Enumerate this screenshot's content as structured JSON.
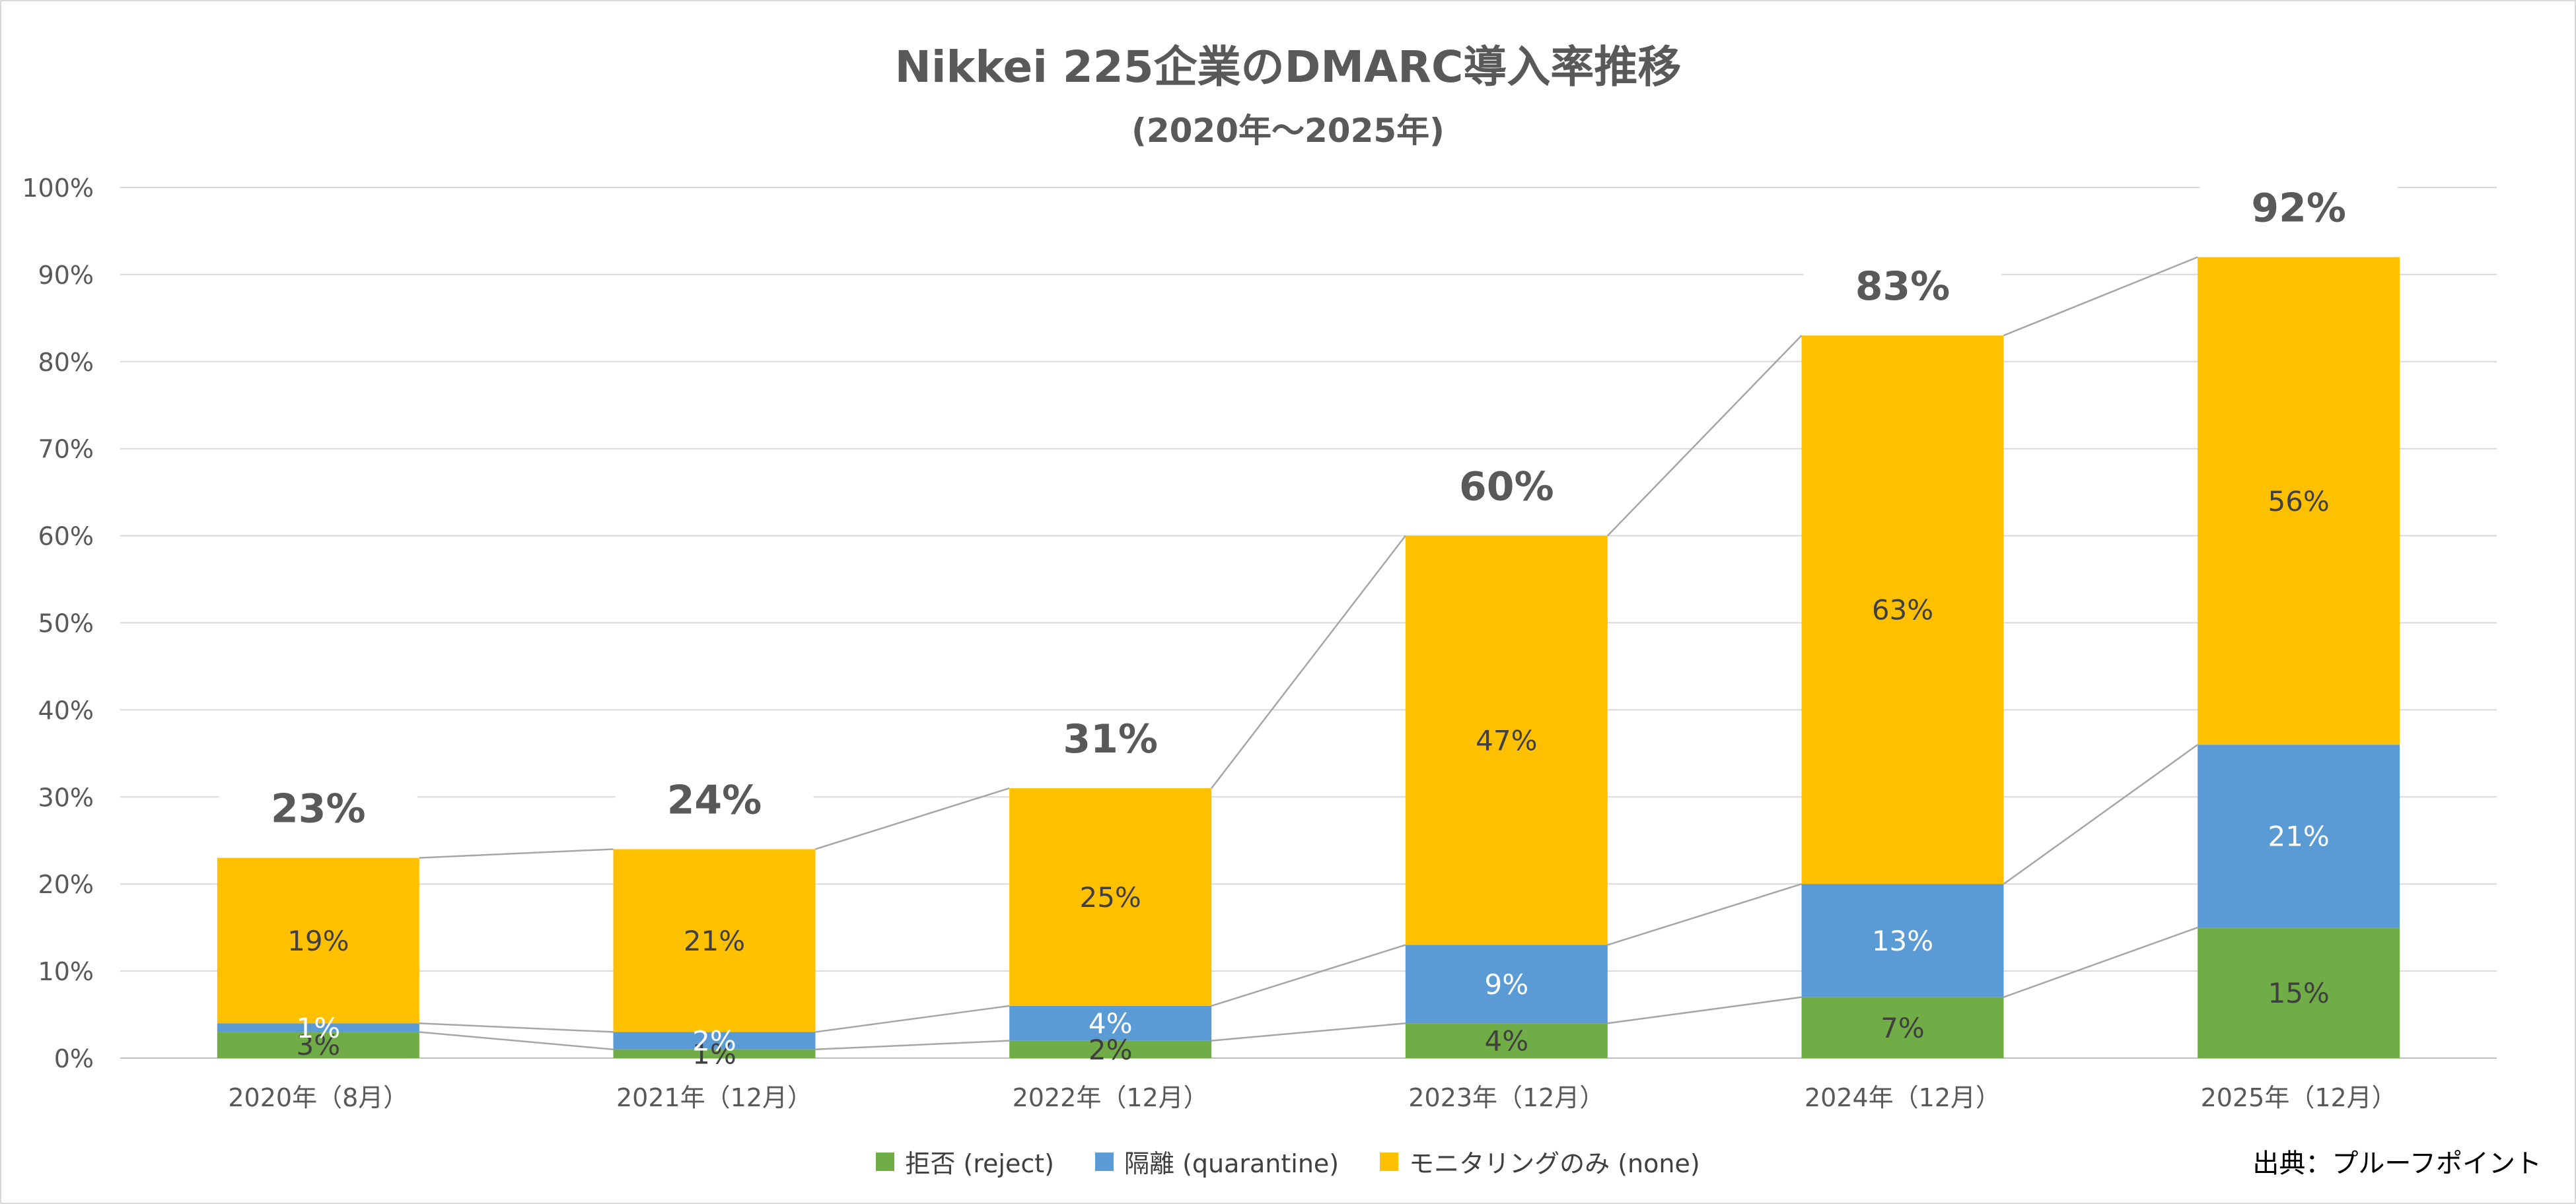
{
  "chart_data": {
    "type": "bar",
    "stacked": true,
    "title": "Nikkei 225企業のDMARC導入率推移",
    "subtitle": "(2020年～2025年)",
    "categories": [
      "2020年（8月）",
      "2021年（12月）",
      "2022年（12月）",
      "2023年（12月）",
      "2024年（12月）",
      "2025年（12月）"
    ],
    "series": [
      {
        "name": "拒否 (reject)",
        "color": "#70ad47",
        "label_color": "#404040",
        "values": [
          3,
          1,
          2,
          4,
          7,
          15
        ],
        "labels": [
          "3%",
          "1%",
          "2%",
          "4%",
          "7%",
          "15%"
        ]
      },
      {
        "name": "隔離 (quarantine)",
        "color": "#5b9bd5",
        "label_color": "#ffffff",
        "values": [
          1,
          2,
          4,
          9,
          13,
          21
        ],
        "labels": [
          "1%",
          "2%",
          "4%",
          "9%",
          "13%",
          "21%"
        ]
      },
      {
        "name": "モニタリングのみ (none)",
        "color": "#ffc000",
        "label_color": "#404040",
        "values": [
          19,
          21,
          25,
          47,
          63,
          56
        ],
        "labels": [
          "19%",
          "21%",
          "25%",
          "47%",
          "63%",
          "56%"
        ]
      }
    ],
    "totals": [
      23,
      24,
      31,
      60,
      83,
      92
    ],
    "total_labels": [
      "23%",
      "24%",
      "31%",
      "60%",
      "83%",
      "92%"
    ],
    "ylim": [
      0,
      100
    ],
    "yticks": [
      "0%",
      "10%",
      "20%",
      "30%",
      "40%",
      "50%",
      "60%",
      "70%",
      "80%",
      "90%",
      "100%"
    ],
    "xlabel": "",
    "ylabel": "",
    "grid": true,
    "series_lines": true,
    "legend_position": "bottom"
  },
  "source_note": "出典：プルーフポイント"
}
